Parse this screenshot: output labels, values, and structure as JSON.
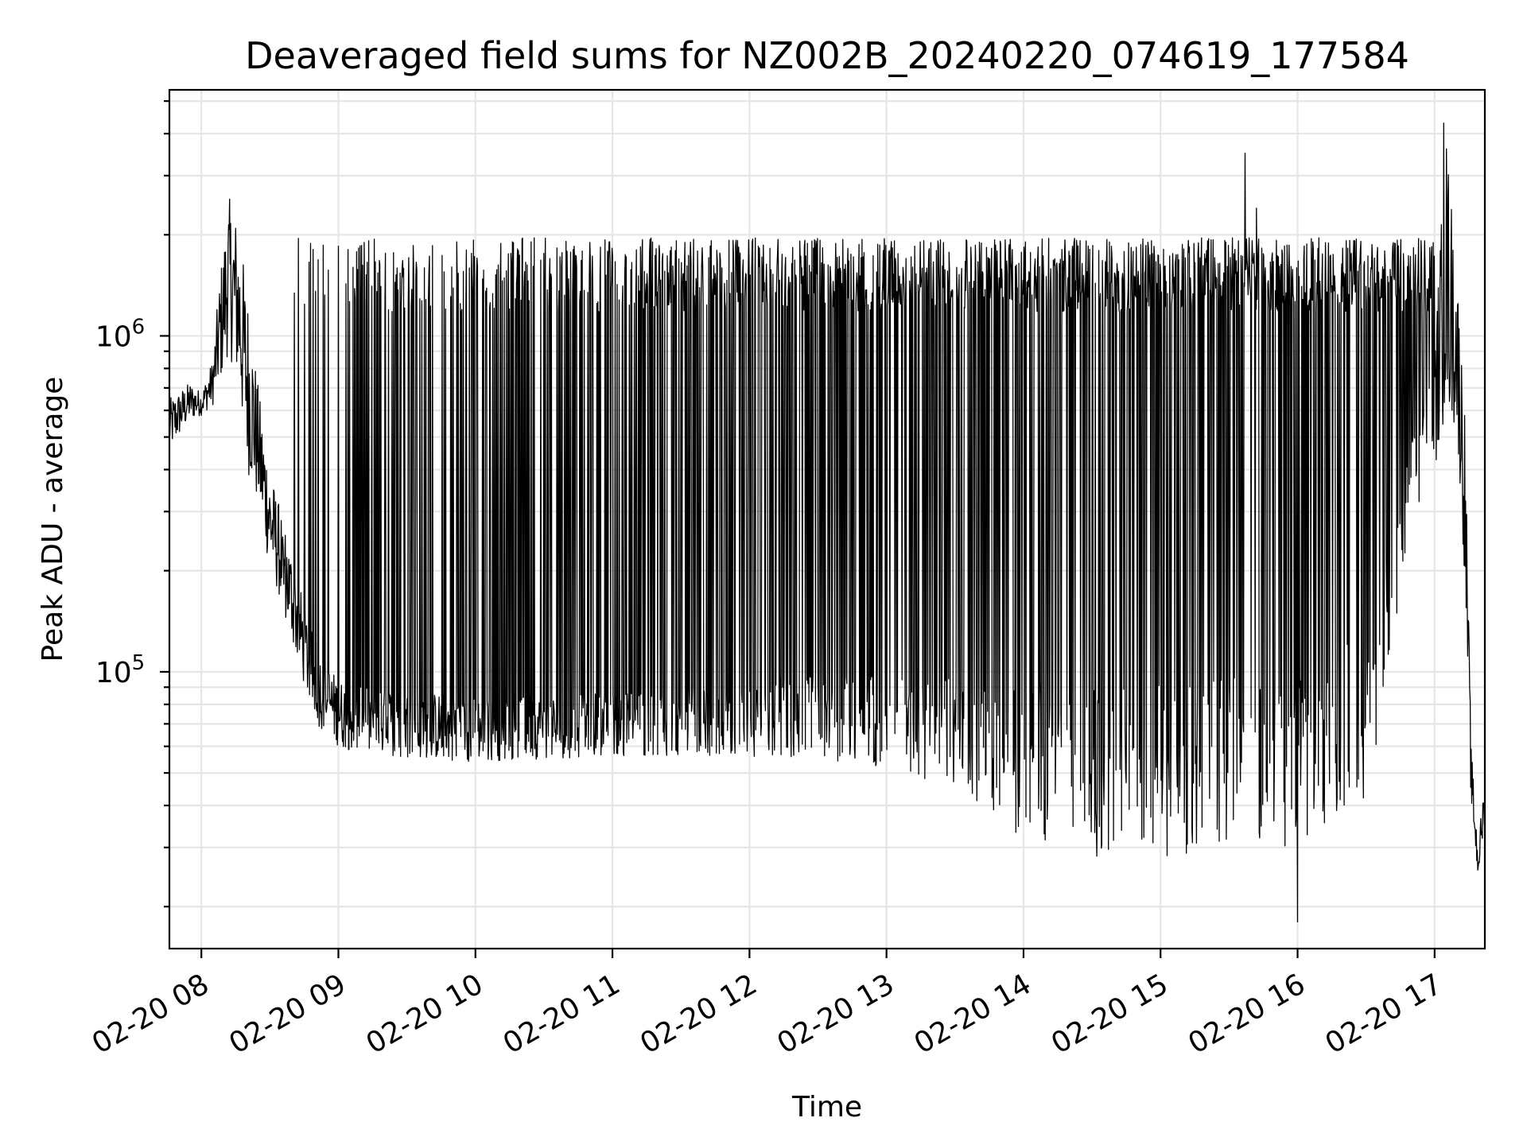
{
  "chart_data": {
    "type": "line",
    "title": "Deaveraged field sums for NZ002B_20240220_074619_177584",
    "xlabel": "Time",
    "ylabel": "Peak ADU - average",
    "yscale": "log",
    "grid": true,
    "xlim": [
      "2024-02-20 07:46",
      "2024-02-20 17:22"
    ],
    "ylim": [
      15000,
      5400000
    ],
    "x_tick_labels": [
      "02-20 08",
      "02-20 09",
      "02-20 10",
      "02-20 11",
      "02-20 12",
      "02-20 13",
      "02-20 14",
      "02-20 15",
      "02-20 16",
      "02-20 17"
    ],
    "x_tick_hours": [
      8,
      9,
      10,
      11,
      12,
      13,
      14,
      15,
      16,
      17
    ],
    "y_tick_labels": [
      {
        "value": 100000,
        "base": "10",
        "exp": "5"
      },
      {
        "value": 1000000,
        "base": "10",
        "exp": "6"
      }
    ],
    "series": [
      {
        "color": "#000000",
        "envelope_points": [
          {
            "t": "07:46",
            "upper": 650000,
            "lower": 450000
          },
          {
            "t": "07:55",
            "upper": 730000,
            "lower": 560000
          },
          {
            "t": "08:00",
            "upper": 680000,
            "lower": 580000
          },
          {
            "t": "08:05",
            "upper": 850000,
            "lower": 620000
          },
          {
            "t": "08:08",
            "upper": 1500000,
            "lower": 700000
          },
          {
            "t": "08:12",
            "upper": 2600000,
            "lower": 900000
          },
          {
            "t": "08:16",
            "upper": 2200000,
            "lower": 700000
          },
          {
            "t": "08:20",
            "upper": 1400000,
            "lower": 400000
          },
          {
            "t": "08:25",
            "upper": 700000,
            "lower": 300000
          },
          {
            "t": "08:30",
            "upper": 400000,
            "lower": 200000
          },
          {
            "t": "08:35",
            "upper": 300000,
            "lower": 160000
          },
          {
            "t": "08:40",
            "upper": 220000,
            "lower": 120000
          },
          {
            "t": "08:45",
            "upper": 160000,
            "lower": 90000
          },
          {
            "t": "08:50",
            "upper": 120000,
            "lower": 70000
          },
          {
            "t": "09:00",
            "upper": 95000,
            "lower": 60000
          },
          {
            "t": "09:10",
            "upper": 90000,
            "lower": 56000
          },
          {
            "t": "09:30",
            "upper": 88000,
            "lower": 55000
          },
          {
            "t": "10:00",
            "upper": 85000,
            "lower": 54000
          },
          {
            "t": "10:30",
            "upper": 85000,
            "lower": 55000
          },
          {
            "t": "11:00",
            "upper": 88000,
            "lower": 56000
          },
          {
            "t": "11:30",
            "upper": 90000,
            "lower": 56000
          },
          {
            "t": "12:00",
            "upper": 95000,
            "lower": 56000
          },
          {
            "t": "12:30",
            "upper": 100000,
            "lower": 55000
          },
          {
            "t": "13:00",
            "upper": 100000,
            "lower": 52000
          },
          {
            "t": "13:30",
            "upper": 95000,
            "lower": 45000
          },
          {
            "t": "14:00",
            "upper": 95000,
            "lower": 32000
          },
          {
            "t": "14:30",
            "upper": 95000,
            "lower": 28000
          },
          {
            "t": "15:00",
            "upper": 95000,
            "lower": 28000
          },
          {
            "t": "15:30",
            "upper": 100000,
            "lower": 30000
          },
          {
            "t": "16:00",
            "upper": 100000,
            "lower": 30000
          },
          {
            "t": "16:30",
            "upper": 130000,
            "lower": 40000
          },
          {
            "t": "16:40",
            "upper": 250000,
            "lower": 100000
          },
          {
            "t": "16:50",
            "upper": 500000,
            "lower": 250000
          },
          {
            "t": "17:00",
            "upper": 900000,
            "lower": 400000
          },
          {
            "t": "17:05",
            "upper": 4200000,
            "lower": 600000
          },
          {
            "t": "17:10",
            "upper": 1500000,
            "lower": 500000
          },
          {
            "t": "17:13",
            "upper": 700000,
            "lower": 200000
          },
          {
            "t": "17:16",
            "upper": 60000,
            "lower": 40000
          },
          {
            "t": "17:19",
            "upper": 30000,
            "lower": 24000
          },
          {
            "t": "17:22",
            "upper": 50000,
            "lower": 35000
          }
        ],
        "oscillation_peak_level": 1600000,
        "oscillation_start": "08:35",
        "oscillation_end": "17:00",
        "notable_spikes": [
          {
            "t": "09:00",
            "value": 1850000
          },
          {
            "t": "15:37",
            "value": 3500000
          },
          {
            "t": "15:42",
            "value": 2400000
          },
          {
            "t": "17:04",
            "value": 4300000
          },
          {
            "t": "16:00",
            "value": 18000
          }
        ]
      }
    ]
  }
}
